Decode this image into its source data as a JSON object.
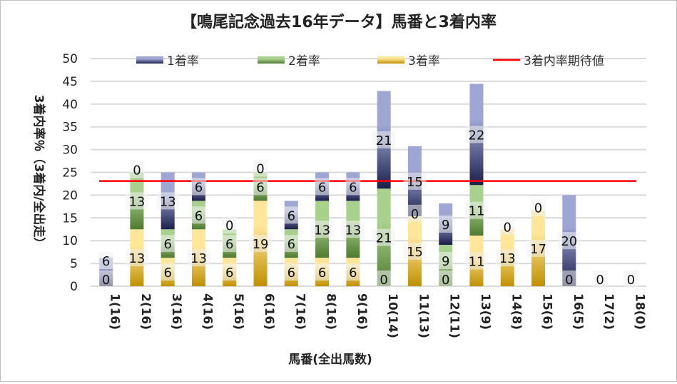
{
  "chart_data": {
    "type": "bar",
    "stacked": true,
    "title": "【鳴尾記念過去16年データ】馬番と3着内率",
    "xlabel": "馬番(全出馬数)",
    "ylabel": "3着内率％（3着内/全出走）",
    "ylim": [
      0,
      50
    ],
    "yticks": [
      0,
      5,
      10,
      15,
      20,
      25,
      30,
      35,
      40,
      45,
      50
    ],
    "grid": true,
    "legend_position": "top",
    "categories": [
      "1(16)",
      "2(16)",
      "3(16)",
      "4(16)",
      "5(16)",
      "6(16)",
      "7(16)",
      "8(16)",
      "9(16)",
      "10(14)",
      "11(13)",
      "12(11)",
      "13(9)",
      "14(8)",
      "15(6)",
      "16(5)",
      "17(2)",
      "18(0)"
    ],
    "series": [
      {
        "name": "3着率",
        "color": "#bf9000",
        "values": [
          0,
          12.5,
          6.25,
          12.5,
          6.25,
          18.75,
          6.25,
          6.25,
          6.25,
          0,
          15.38,
          0,
          11.11,
          12.5,
          16.67,
          0,
          0,
          0
        ],
        "labels": [
          "0",
          "13",
          "6",
          "13",
          "6",
          "19",
          "6",
          "6",
          "6",
          "0",
          "15",
          "0",
          "11",
          "13",
          "17",
          "0",
          "0",
          "0"
        ]
      },
      {
        "name": "2着率",
        "color": "#548235",
        "values": [
          0,
          12.5,
          6.25,
          6.25,
          6.25,
          6.25,
          6.25,
          12.5,
          12.5,
          21.43,
          0,
          9.09,
          11.11,
          0,
          0,
          0,
          0,
          0
        ],
        "labels": [
          null,
          "13",
          "6",
          "6",
          "6",
          "6",
          "6",
          "13",
          "13",
          "21",
          "0",
          "9",
          "11",
          "0",
          "0",
          null,
          null,
          null
        ]
      },
      {
        "name": "1着率",
        "color": "#2f3580",
        "values": [
          6.25,
          0,
          12.5,
          6.25,
          0,
          0,
          6.25,
          6.25,
          6.25,
          21.43,
          15.38,
          9.09,
          22.22,
          0,
          0,
          20,
          0,
          0
        ],
        "labels": [
          "6",
          "0",
          "13",
          "6",
          "0",
          "0",
          "6",
          "6",
          "6",
          "21",
          "15",
          "9",
          "22",
          null,
          null,
          "20",
          null,
          null
        ]
      }
    ],
    "reference_line": {
      "name": "3着内率期待値",
      "value": 23.1,
      "color": "#ff0000"
    },
    "legend": [
      "1着率",
      "2着率",
      "3着率",
      "3着内率期待値"
    ]
  }
}
